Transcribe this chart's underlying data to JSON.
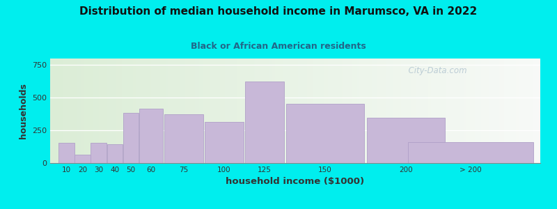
{
  "title": "Distribution of median household income in Marumsco, VA in 2022",
  "subtitle": "Black or African American residents",
  "xlabel": "household income ($1000)",
  "ylabel": "households",
  "bg_color": "#00EEEE",
  "bar_color": "#C8B8D8",
  "bar_edge_color": "#B0A0C8",
  "bar_positions": [
    10,
    20,
    30,
    40,
    50,
    60,
    75,
    100,
    125,
    150,
    200,
    225
  ],
  "bar_widths": [
    10,
    10,
    10,
    10,
    10,
    15,
    25,
    25,
    25,
    50,
    50,
    80
  ],
  "heights": [
    155,
    65,
    155,
    145,
    385,
    415,
    375,
    315,
    625,
    455,
    345,
    160
  ],
  "ylim": [
    0,
    800
  ],
  "yticks": [
    0,
    250,
    500,
    750
  ],
  "xtick_labels": [
    "10",
    "20",
    "30",
    "40",
    "50",
    "60",
    "75",
    "100",
    "125",
    "150",
    "200",
    "> 200"
  ],
  "xlim": [
    5,
    308
  ],
  "title_color": "#111111",
  "subtitle_color": "#226688",
  "watermark": "  City-Data.com",
  "xlabel_color": "#333333",
  "ylabel_color": "#333333"
}
